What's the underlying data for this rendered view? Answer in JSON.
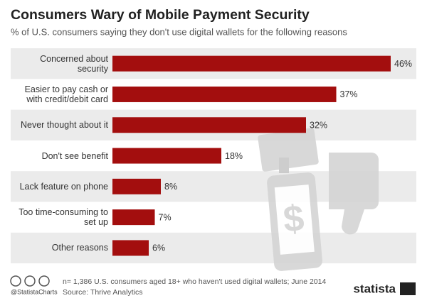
{
  "chart_data": {
    "type": "bar",
    "orientation": "horizontal",
    "title": "Consumers Wary of Mobile Payment Security",
    "subtitle": "% of U.S. consumers saying they don't use digital wallets for the following reasons",
    "categories": [
      "Concerned about security",
      "Easier to pay cash or with credit/debit card",
      "Never thought about it",
      "Don't see benefit",
      "Lack feature on phone",
      "Too time-consuming to set up",
      "Other reasons"
    ],
    "values": [
      46,
      37,
      32,
      18,
      8,
      7,
      6
    ],
    "value_labels": [
      "46%",
      "37%",
      "32%",
      "18%",
      "8%",
      "7%",
      "6%"
    ],
    "color": "#a30e0e",
    "note": "n= 1,386 U.S. consumers aged 18+ who haven't used digital wallets; June 2014",
    "source": "Source: Thrive Analytics",
    "credit": "@StatistaCharts",
    "brand": "statista"
  }
}
